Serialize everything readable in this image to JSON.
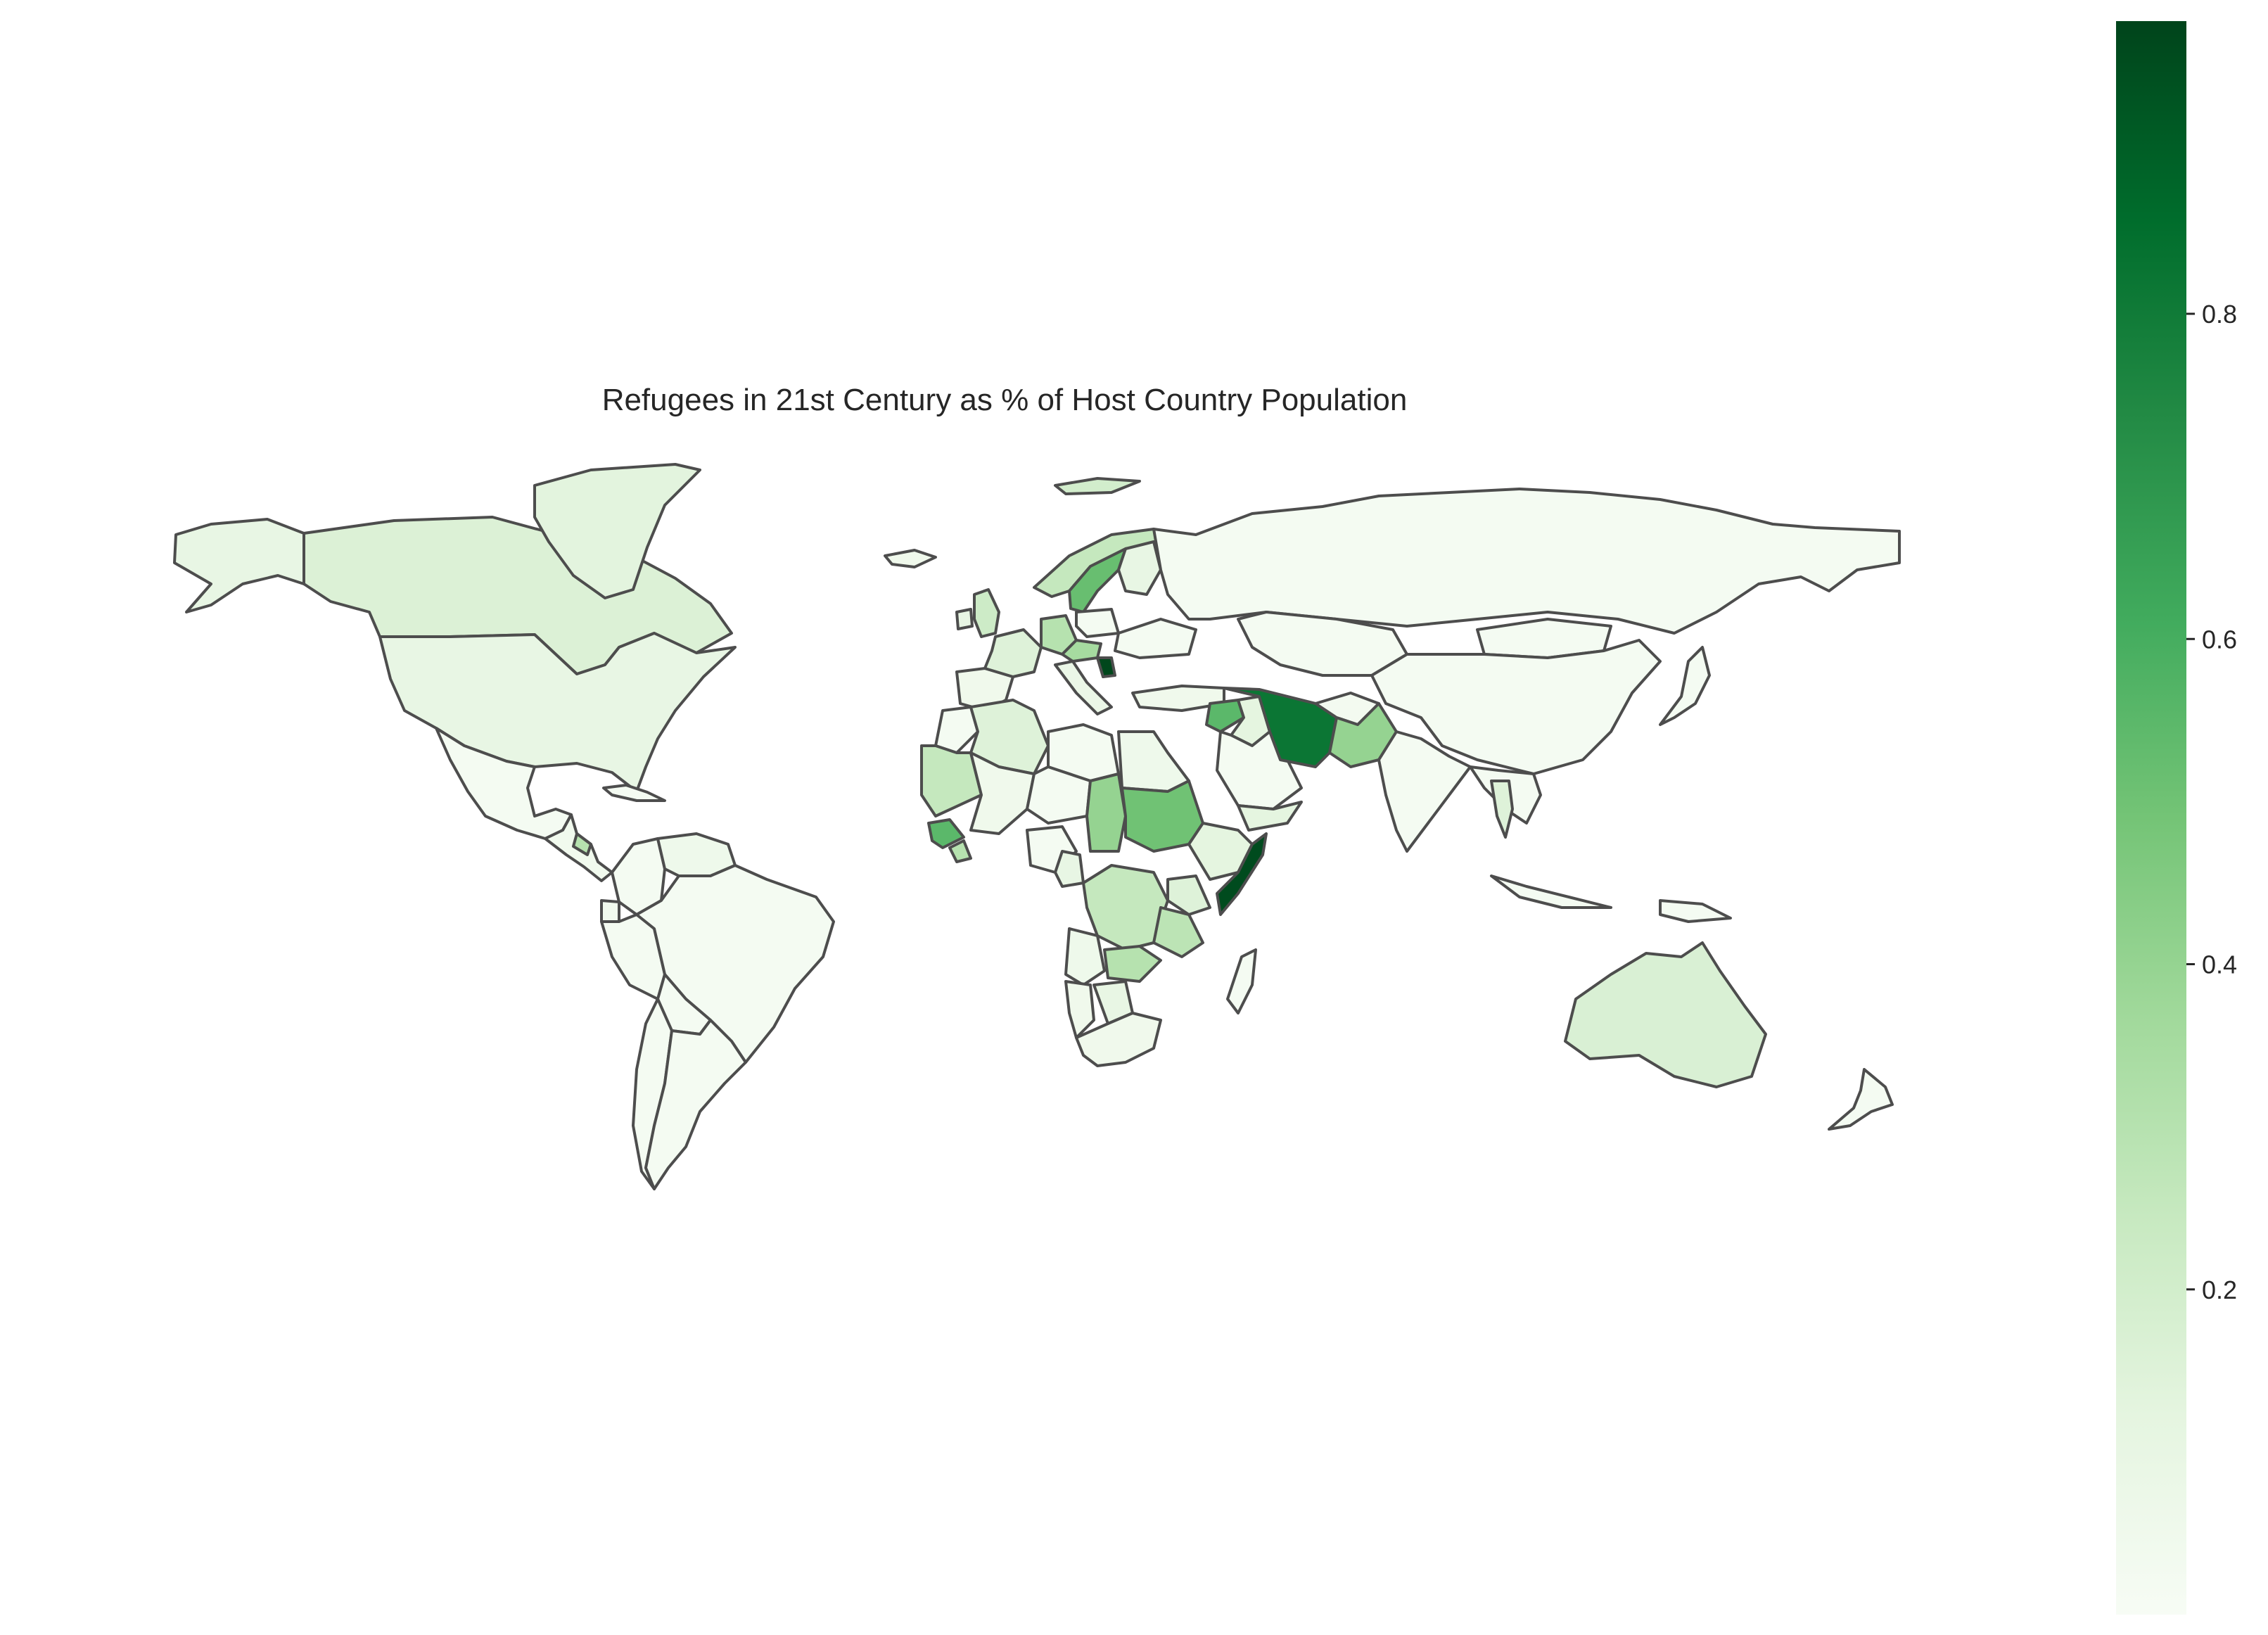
{
  "title": "Refugees in 21st Century as % of Host Country Population",
  "colorbar": {
    "colormap": "Greens",
    "min": 0.0,
    "max": 0.98,
    "ticks": [
      0.2,
      0.4,
      0.6,
      0.8
    ],
    "tick_labels": [
      "0.2",
      "0.4",
      "0.6",
      "0.8"
    ],
    "stops": [
      "#f7fcf5",
      "#e5f5e0",
      "#c7e9c0",
      "#a1d99b",
      "#74c476",
      "#41ab5d",
      "#238b45",
      "#006d2c",
      "#00441b"
    ]
  },
  "map": {
    "projection": "equirectangular",
    "edge_color": "#4d4d4d",
    "countries": [
      {
        "name": "Canada",
        "value": 0.16
      },
      {
        "name": "Greenland",
        "value": 0.13
      },
      {
        "name": "Alaska",
        "value": 0.1
      },
      {
        "name": "United States",
        "value": 0.1
      },
      {
        "name": "Mexico",
        "value": 0.02
      },
      {
        "name": "Central America",
        "value": 0.04
      },
      {
        "name": "Costa Rica",
        "value": 0.3
      },
      {
        "name": "Cuba",
        "value": 0.02
      },
      {
        "name": "Colombia",
        "value": 0.02
      },
      {
        "name": "Venezuela",
        "value": 0.06
      },
      {
        "name": "Ecuador",
        "value": 0.04
      },
      {
        "name": "Peru",
        "value": 0.02
      },
      {
        "name": "Brazil",
        "value": 0.02
      },
      {
        "name": "Bolivia",
        "value": 0.02
      },
      {
        "name": "Chile",
        "value": 0.02
      },
      {
        "name": "Argentina",
        "value": 0.02
      },
      {
        "name": "Svalbard",
        "value": 0.2
      },
      {
        "name": "Iceland",
        "value": 0.05
      },
      {
        "name": "United Kingdom",
        "value": 0.22
      },
      {
        "name": "Ireland",
        "value": 0.1
      },
      {
        "name": "Spain",
        "value": 0.05
      },
      {
        "name": "France",
        "value": 0.15
      },
      {
        "name": "Germany",
        "value": 0.3
      },
      {
        "name": "Norway",
        "value": 0.25
      },
      {
        "name": "Sweden",
        "value": 0.52
      },
      {
        "name": "Finland",
        "value": 0.1
      },
      {
        "name": "Poland",
        "value": 0.02
      },
      {
        "name": "Austria",
        "value": 0.35
      },
      {
        "name": "Italy",
        "value": 0.08
      },
      {
        "name": "Serbia",
        "value": 0.97
      },
      {
        "name": "Ukraine",
        "value": 0.02
      },
      {
        "name": "Turkey",
        "value": 0.05
      },
      {
        "name": "Russia",
        "value": 0.02
      },
      {
        "name": "Kazakhstan",
        "value": 0.02
      },
      {
        "name": "Mongolia",
        "value": 0.02
      },
      {
        "name": "China",
        "value": 0.02
      },
      {
        "name": "Japan",
        "value": 0.02
      },
      {
        "name": "Syria",
        "value": 0.55
      },
      {
        "name": "Iraq",
        "value": 0.12
      },
      {
        "name": "Saudi Arabia",
        "value": 0.02
      },
      {
        "name": "Yemen",
        "value": 0.12
      },
      {
        "name": "Iran",
        "value": 0.82
      },
      {
        "name": "Afghanistan",
        "value": 0.03
      },
      {
        "name": "Pakistan",
        "value": 0.4
      },
      {
        "name": "India",
        "value": 0.02
      },
      {
        "name": "Southeast Asia",
        "value": 0.02
      },
      {
        "name": "Thailand",
        "value": 0.15
      },
      {
        "name": "Indonesia",
        "value": 0.02
      },
      {
        "name": "Papua New Guinea",
        "value": 0.02
      },
      {
        "name": "Australia",
        "value": 0.17
      },
      {
        "name": "New Zealand",
        "value": 0.02
      },
      {
        "name": "Morocco",
        "value": 0.02
      },
      {
        "name": "Algeria",
        "value": 0.15
      },
      {
        "name": "Libya",
        "value": 0.02
      },
      {
        "name": "Egypt",
        "value": 0.06
      },
      {
        "name": "Mauritania",
        "value": 0.25
      },
      {
        "name": "Mali",
        "value": 0.05
      },
      {
        "name": "Niger",
        "value": 0.02
      },
      {
        "name": "Chad",
        "value": 0.4
      },
      {
        "name": "Sudan",
        "value": 0.5
      },
      {
        "name": "Ethiopia",
        "value": 0.12
      },
      {
        "name": "Somalia",
        "value": 0.96
      },
      {
        "name": "Guinea",
        "value": 0.55
      },
      {
        "name": "Liberia",
        "value": 0.3
      },
      {
        "name": "Nigeria",
        "value": 0.02
      },
      {
        "name": "Cameroon",
        "value": 0.1
      },
      {
        "name": "DR Congo",
        "value": 0.25
      },
      {
        "name": "Kenya",
        "value": 0.15
      },
      {
        "name": "Tanzania",
        "value": 0.28
      },
      {
        "name": "Angola",
        "value": 0.06
      },
      {
        "name": "Zambia",
        "value": 0.3
      },
      {
        "name": "Namibia",
        "value": 0.05
      },
      {
        "name": "Botswana",
        "value": 0.1
      },
      {
        "name": "South Africa",
        "value": 0.05
      },
      {
        "name": "Madagascar",
        "value": 0.02
      }
    ]
  }
}
